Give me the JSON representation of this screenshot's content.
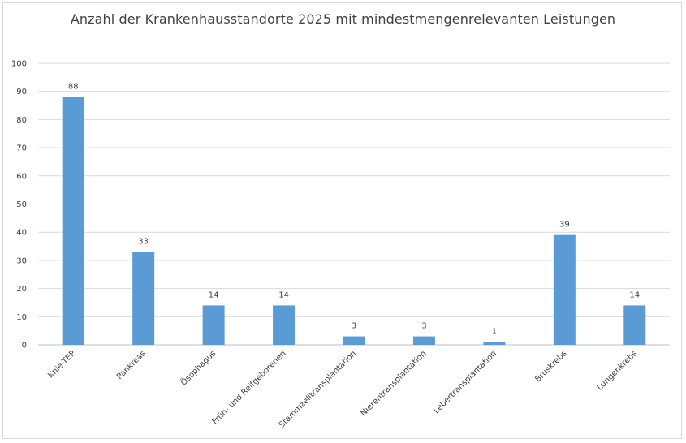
{
  "chart_data": {
    "type": "bar",
    "title": "Anzahl der Krankenhausstandorte 2025 mit mindestmengenrelevanten Leistungen",
    "xlabel": "",
    "ylabel": "",
    "categories": [
      "Knie-TEP",
      "Pankreas",
      "Ösophagus",
      "Früh- und Reifgeborenen",
      "Stammzelltransplantation",
      "Nierentransplantation",
      "Lebertransplantation",
      "Bruskrebs",
      "Lungenkrebs"
    ],
    "values": [
      88,
      33,
      14,
      14,
      3,
      3,
      1,
      39,
      14
    ],
    "ylim": [
      0,
      100
    ],
    "yticks": [
      0,
      10,
      20,
      30,
      40,
      50,
      60,
      70,
      80,
      90,
      100
    ],
    "grid": true,
    "bar_color": "#5b9bd5",
    "data_labels": true
  }
}
